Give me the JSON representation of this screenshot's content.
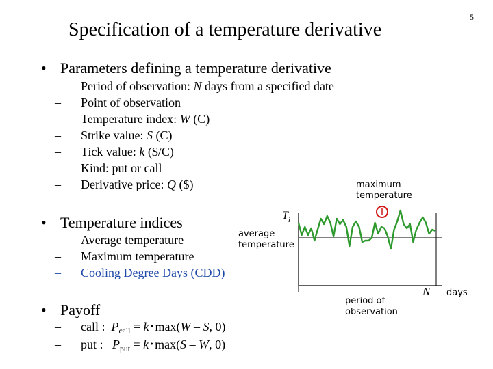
{
  "slide": {
    "page_number": "5",
    "title": "Specification of a temperature derivative"
  },
  "section1": {
    "heading": "Parameters defining a temperature derivative",
    "items": [
      {
        "pre": "Period of observation: ",
        "var": "N",
        "post": " days from a specified date"
      },
      {
        "pre": "Point of observation",
        "var": "",
        "post": ""
      },
      {
        "pre": "Temperature index: ",
        "var": "W",
        "post": " (C)"
      },
      {
        "pre": "Strike value: ",
        "var": "S",
        "post": " (C)"
      },
      {
        "pre": "Tick value: ",
        "var": "k",
        "post": " ($/C)"
      },
      {
        "pre": "Kind: put or call",
        "var": "",
        "post": ""
      },
      {
        "pre": "Derivative price: ",
        "var": "Q",
        "post": " ($)"
      }
    ]
  },
  "section2": {
    "heading": "Temperature indices",
    "items": [
      "Average temperature",
      "Maximum temperature",
      "Cooling Degree Days (CDD)"
    ]
  },
  "section3": {
    "heading": "Payoff",
    "call": {
      "label": "call",
      "p": "P",
      "sub": "call",
      "eq": " = ",
      "k": "k",
      "dot": "･",
      "expr": "max(",
      "a": "W",
      "minus": " – ",
      "b": "S",
      "tail": ", 0)"
    },
    "put": {
      "label": "put",
      "p": "P",
      "sub": "put",
      "eq": " = ",
      "k": "k",
      "dot": "･",
      "expr": "max(",
      "a": "S",
      "minus": " – ",
      "b": "W",
      "tail": ", 0)"
    }
  },
  "diagram": {
    "label_max": [
      "maximum",
      "temperature"
    ],
    "label_avg": [
      "average",
      "temperature"
    ],
    "label_Ti": "T",
    "label_Ti_sub": "i",
    "label_N": "N",
    "label_days": "days",
    "label_period": [
      "period of",
      "observation"
    ],
    "max_marker_color": "#d01818",
    "line_color": "#2e9a2e",
    "temperature_path": [
      [
        0,
        20
      ],
      [
        5,
        38
      ],
      [
        10,
        26
      ],
      [
        15,
        38
      ],
      [
        20,
        28
      ],
      [
        25,
        46
      ],
      [
        30,
        30
      ],
      [
        35,
        14
      ],
      [
        40,
        22
      ],
      [
        45,
        10
      ],
      [
        50,
        20
      ],
      [
        55,
        40
      ],
      [
        60,
        14
      ],
      [
        65,
        22
      ],
      [
        70,
        16
      ],
      [
        75,
        26
      ],
      [
        80,
        54
      ],
      [
        85,
        26
      ],
      [
        90,
        18
      ],
      [
        95,
        26
      ],
      [
        100,
        48
      ],
      [
        105,
        46
      ],
      [
        110,
        46
      ],
      [
        115,
        42
      ],
      [
        120,
        20
      ],
      [
        125,
        36
      ],
      [
        130,
        26
      ],
      [
        135,
        28
      ],
      [
        140,
        40
      ],
      [
        145,
        58
      ],
      [
        150,
        30
      ],
      [
        155,
        18
      ],
      [
        160,
        2
      ],
      [
        165,
        22
      ],
      [
        170,
        28
      ],
      [
        175,
        22
      ],
      [
        180,
        48
      ],
      [
        185,
        30
      ],
      [
        190,
        20
      ],
      [
        195,
        12
      ],
      [
        200,
        20
      ],
      [
        205,
        36
      ],
      [
        210,
        30
      ],
      [
        215,
        32
      ]
    ]
  }
}
